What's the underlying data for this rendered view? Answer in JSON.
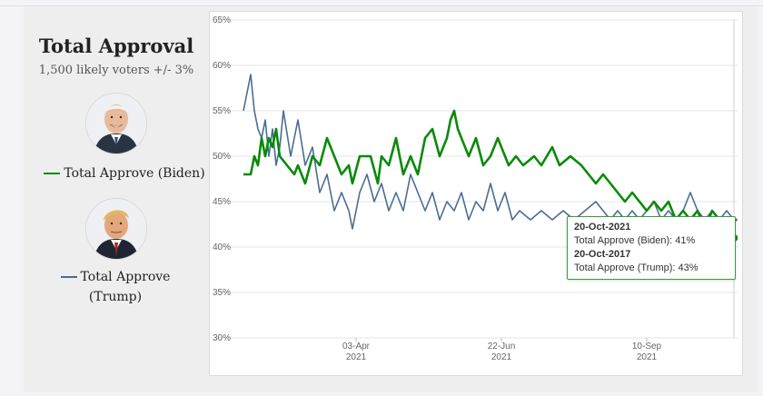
{
  "panel": {
    "title": "Total Approval",
    "subtitle": "1,500 likely voters +/- 3%",
    "legend_biden": "Total Approve (Biden)",
    "legend_trump_line1": "Total Approve",
    "legend_trump_line2": "(Trump)"
  },
  "colors": {
    "biden": "#0a8a0a",
    "trump": "#4a6d95",
    "grid": "#e6e6e6"
  },
  "tooltip": {
    "date1": "20-Oct-2021",
    "line1": "Total Approve (Biden): 41%",
    "date2": "20-Oct-2017",
    "line2": "Total Approve (Trump): 43%"
  },
  "chart_data": {
    "type": "line",
    "title": "Total Approval",
    "xlabel": "",
    "ylabel": "",
    "ylim": [
      30,
      65
    ],
    "yticks": [
      "30%",
      "35%",
      "40%",
      "45%",
      "50%",
      "55%",
      "60%",
      "65%"
    ],
    "xlim_days": [
      0,
      272
    ],
    "xticks": [
      {
        "day": 62,
        "label": "03-Apr",
        "year": "2021"
      },
      {
        "day": 142,
        "label": "22-Jun",
        "year": "2021"
      },
      {
        "day": 222,
        "label": "10-Sep",
        "year": "2021"
      }
    ],
    "series": [
      {
        "name": "Total Approve (Biden)",
        "color": "#0a8a0a",
        "points": [
          [
            0,
            48
          ],
          [
            4,
            48
          ],
          [
            6,
            50
          ],
          [
            8,
            49
          ],
          [
            10,
            52
          ],
          [
            12,
            50
          ],
          [
            14,
            52
          ],
          [
            16,
            51
          ],
          [
            18,
            53
          ],
          [
            20,
            50
          ],
          [
            24,
            49
          ],
          [
            28,
            48
          ],
          [
            30,
            49
          ],
          [
            34,
            47
          ],
          [
            38,
            50
          ],
          [
            42,
            49
          ],
          [
            46,
            52
          ],
          [
            50,
            50
          ],
          [
            54,
            48
          ],
          [
            58,
            49
          ],
          [
            60,
            47
          ],
          [
            64,
            50
          ],
          [
            70,
            50
          ],
          [
            74,
            47
          ],
          [
            76,
            50
          ],
          [
            80,
            49
          ],
          [
            84,
            52
          ],
          [
            88,
            48
          ],
          [
            92,
            50
          ],
          [
            96,
            48
          ],
          [
            100,
            52
          ],
          [
            104,
            53
          ],
          [
            108,
            50
          ],
          [
            112,
            52
          ],
          [
            114,
            54
          ],
          [
            116,
            55
          ],
          [
            118,
            53
          ],
          [
            120,
            52
          ],
          [
            124,
            50
          ],
          [
            128,
            52
          ],
          [
            132,
            49
          ],
          [
            136,
            50
          ],
          [
            140,
            52
          ],
          [
            142,
            51
          ],
          [
            146,
            49
          ],
          [
            150,
            50
          ],
          [
            154,
            49
          ],
          [
            160,
            50
          ],
          [
            164,
            49
          ],
          [
            170,
            51
          ],
          [
            174,
            49
          ],
          [
            180,
            50
          ],
          [
            186,
            49
          ],
          [
            190,
            48
          ],
          [
            194,
            47
          ],
          [
            198,
            48
          ],
          [
            202,
            47
          ],
          [
            206,
            46
          ],
          [
            210,
            45
          ],
          [
            214,
            46
          ],
          [
            218,
            45
          ],
          [
            222,
            44
          ],
          [
            226,
            45
          ],
          [
            230,
            44
          ],
          [
            234,
            45
          ],
          [
            238,
            43
          ],
          [
            242,
            44
          ],
          [
            246,
            43
          ],
          [
            250,
            44
          ],
          [
            254,
            42
          ],
          [
            258,
            44
          ],
          [
            262,
            43
          ],
          [
            266,
            43
          ],
          [
            270,
            41
          ]
        ]
      },
      {
        "name": "Total Approve (Trump)",
        "color": "#4a6d95",
        "points": [
          [
            0,
            55
          ],
          [
            2,
            57
          ],
          [
            4,
            59
          ],
          [
            6,
            55
          ],
          [
            8,
            53
          ],
          [
            10,
            52
          ],
          [
            12,
            54
          ],
          [
            14,
            50
          ],
          [
            16,
            53
          ],
          [
            18,
            49
          ],
          [
            20,
            51
          ],
          [
            22,
            55
          ],
          [
            26,
            50
          ],
          [
            30,
            54
          ],
          [
            34,
            49
          ],
          [
            38,
            51
          ],
          [
            42,
            46
          ],
          [
            46,
            48
          ],
          [
            50,
            44
          ],
          [
            54,
            46
          ],
          [
            58,
            44
          ],
          [
            60,
            42
          ],
          [
            64,
            46
          ],
          [
            68,
            48
          ],
          [
            72,
            45
          ],
          [
            76,
            47
          ],
          [
            80,
            44
          ],
          [
            84,
            46
          ],
          [
            88,
            44
          ],
          [
            92,
            48
          ],
          [
            96,
            46
          ],
          [
            100,
            44
          ],
          [
            104,
            46
          ],
          [
            108,
            43
          ],
          [
            112,
            45
          ],
          [
            116,
            44
          ],
          [
            120,
            46
          ],
          [
            124,
            43
          ],
          [
            128,
            45
          ],
          [
            132,
            44
          ],
          [
            136,
            47
          ],
          [
            140,
            44
          ],
          [
            144,
            46
          ],
          [
            148,
            43
          ],
          [
            152,
            44
          ],
          [
            158,
            43
          ],
          [
            164,
            44
          ],
          [
            170,
            43
          ],
          [
            176,
            44
          ],
          [
            182,
            43
          ],
          [
            188,
            44
          ],
          [
            194,
            45
          ],
          [
            198,
            44
          ],
          [
            202,
            43
          ],
          [
            206,
            44
          ],
          [
            210,
            43
          ],
          [
            214,
            44
          ],
          [
            218,
            43
          ],
          [
            222,
            44
          ],
          [
            226,
            45
          ],
          [
            230,
            43
          ],
          [
            234,
            44
          ],
          [
            238,
            43
          ],
          [
            242,
            44
          ],
          [
            246,
            46
          ],
          [
            250,
            44
          ],
          [
            254,
            43
          ],
          [
            258,
            44
          ],
          [
            262,
            43
          ],
          [
            266,
            44
          ],
          [
            270,
            43
          ]
        ]
      }
    ]
  }
}
